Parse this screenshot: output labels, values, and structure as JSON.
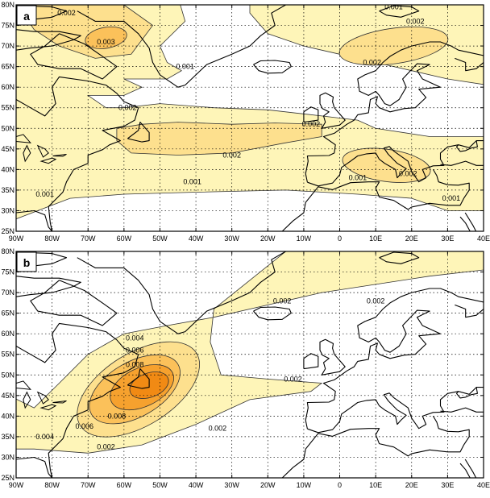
{
  "axes": {
    "lat_labels": [
      "80N",
      "75N",
      "70N",
      "65N",
      "60N",
      "55N",
      "50N",
      "45N",
      "40N",
      "35N",
      "30N",
      "25N"
    ],
    "lon_labels": [
      "90W",
      "80W",
      "70W",
      "60W",
      "50W",
      "40W",
      "30W",
      "20W",
      "10W",
      "0",
      "10E",
      "20E",
      "30E",
      "40E"
    ]
  },
  "palette": {
    "level1": "#fef5b8",
    "level2": "#fde08e",
    "level3": "#fbc15a",
    "level4": "#f6a12e",
    "level5": "#f18a14",
    "land": "#ffffff",
    "coast": "#000000"
  },
  "panels": [
    {
      "label": "a",
      "contour_labels": [
        {
          "text": "0.002",
          "lon": -76,
          "lat": 78
        },
        {
          "text": "0.003",
          "lon": -65,
          "lat": 71
        },
        {
          "text": "0.001",
          "lon": -43,
          "lat": 65
        },
        {
          "text": "0.002",
          "lon": -59,
          "lat": 55
        },
        {
          "text": "0.002",
          "lon": -8,
          "lat": 51
        },
        {
          "text": "0.002",
          "lon": -30,
          "lat": 43.5
        },
        {
          "text": "0.001",
          "lon": -41,
          "lat": 37
        },
        {
          "text": "0.001",
          "lon": -82,
          "lat": 34
        },
        {
          "text": "0.001",
          "lon": 5,
          "lat": 38
        },
        {
          "text": "0.002",
          "lon": 19,
          "lat": 39
        },
        {
          "text": "0.001",
          "lon": 31,
          "lat": 33
        },
        {
          "text": "0.002",
          "lon": 9,
          "lat": 66
        },
        {
          "text": "0.002",
          "lon": 21,
          "lat": 76
        },
        {
          "text": "0.001",
          "lon": 15,
          "lat": 79.5
        }
      ]
    },
    {
      "label": "b",
      "contour_labels": [
        {
          "text": "0.002",
          "lon": -16,
          "lat": 68
        },
        {
          "text": "0.002",
          "lon": 10,
          "lat": 68
        },
        {
          "text": "0.004",
          "lon": -57,
          "lat": 59
        },
        {
          "text": "0.006",
          "lon": -57,
          "lat": 56
        },
        {
          "text": "0.008",
          "lon": -57,
          "lat": 52.5
        },
        {
          "text": "0.008",
          "lon": -62,
          "lat": 40
        },
        {
          "text": "0.006",
          "lon": -71,
          "lat": 37.5
        },
        {
          "text": "0.004",
          "lon": -82,
          "lat": 35
        },
        {
          "text": "0.002",
          "lon": -65,
          "lat": 32.5
        },
        {
          "text": "0.002",
          "lon": -34,
          "lat": 37
        },
        {
          "text": "0.002",
          "lon": -13,
          "lat": 49
        }
      ]
    }
  ]
}
